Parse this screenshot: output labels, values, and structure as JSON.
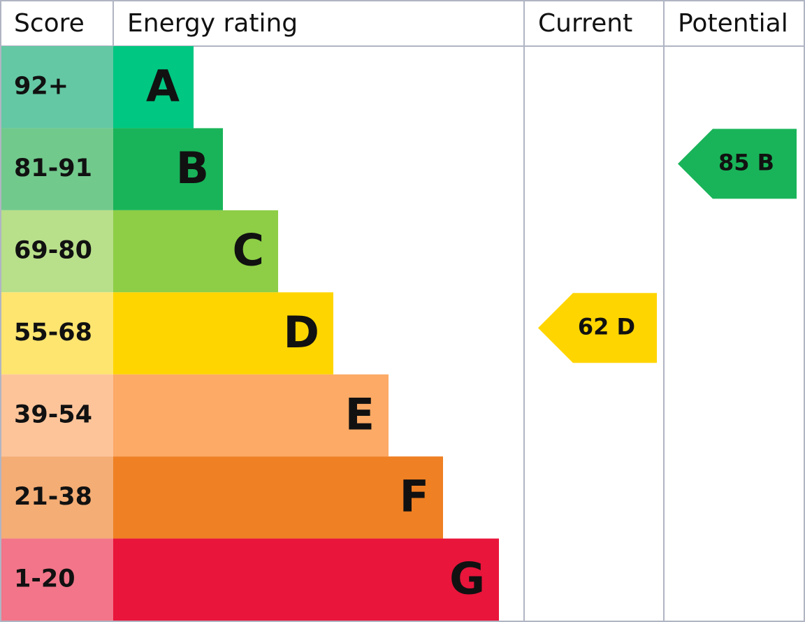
{
  "header": {
    "score": "Score",
    "energy_rating": "Energy rating",
    "current": "Current",
    "potential": "Potential"
  },
  "bands": [
    {
      "score": "92+",
      "letter": "A",
      "score_color": "#64c8a4",
      "color": "#00c781"
    },
    {
      "score": "81-91",
      "letter": "B",
      "score_color": "#72c98c",
      "color": "#19b459"
    },
    {
      "score": "69-80",
      "letter": "C",
      "score_color": "#b8df8a",
      "color": "#8dce46"
    },
    {
      "score": "55-68",
      "letter": "D",
      "score_color": "#fee56f",
      "color": "#ffd500"
    },
    {
      "score": "39-54",
      "letter": "E",
      "score_color": "#fdc49a",
      "color": "#fcaa65"
    },
    {
      "score": "21-38",
      "letter": "F",
      "score_color": "#f4ad75",
      "color": "#ef8023"
    },
    {
      "score": "1-20",
      "letter": "G",
      "score_color": "#f27589",
      "color": "#e9153b"
    }
  ],
  "current": {
    "score": 62,
    "rating": "D"
  },
  "potential": {
    "score": 85,
    "rating": "B"
  }
}
